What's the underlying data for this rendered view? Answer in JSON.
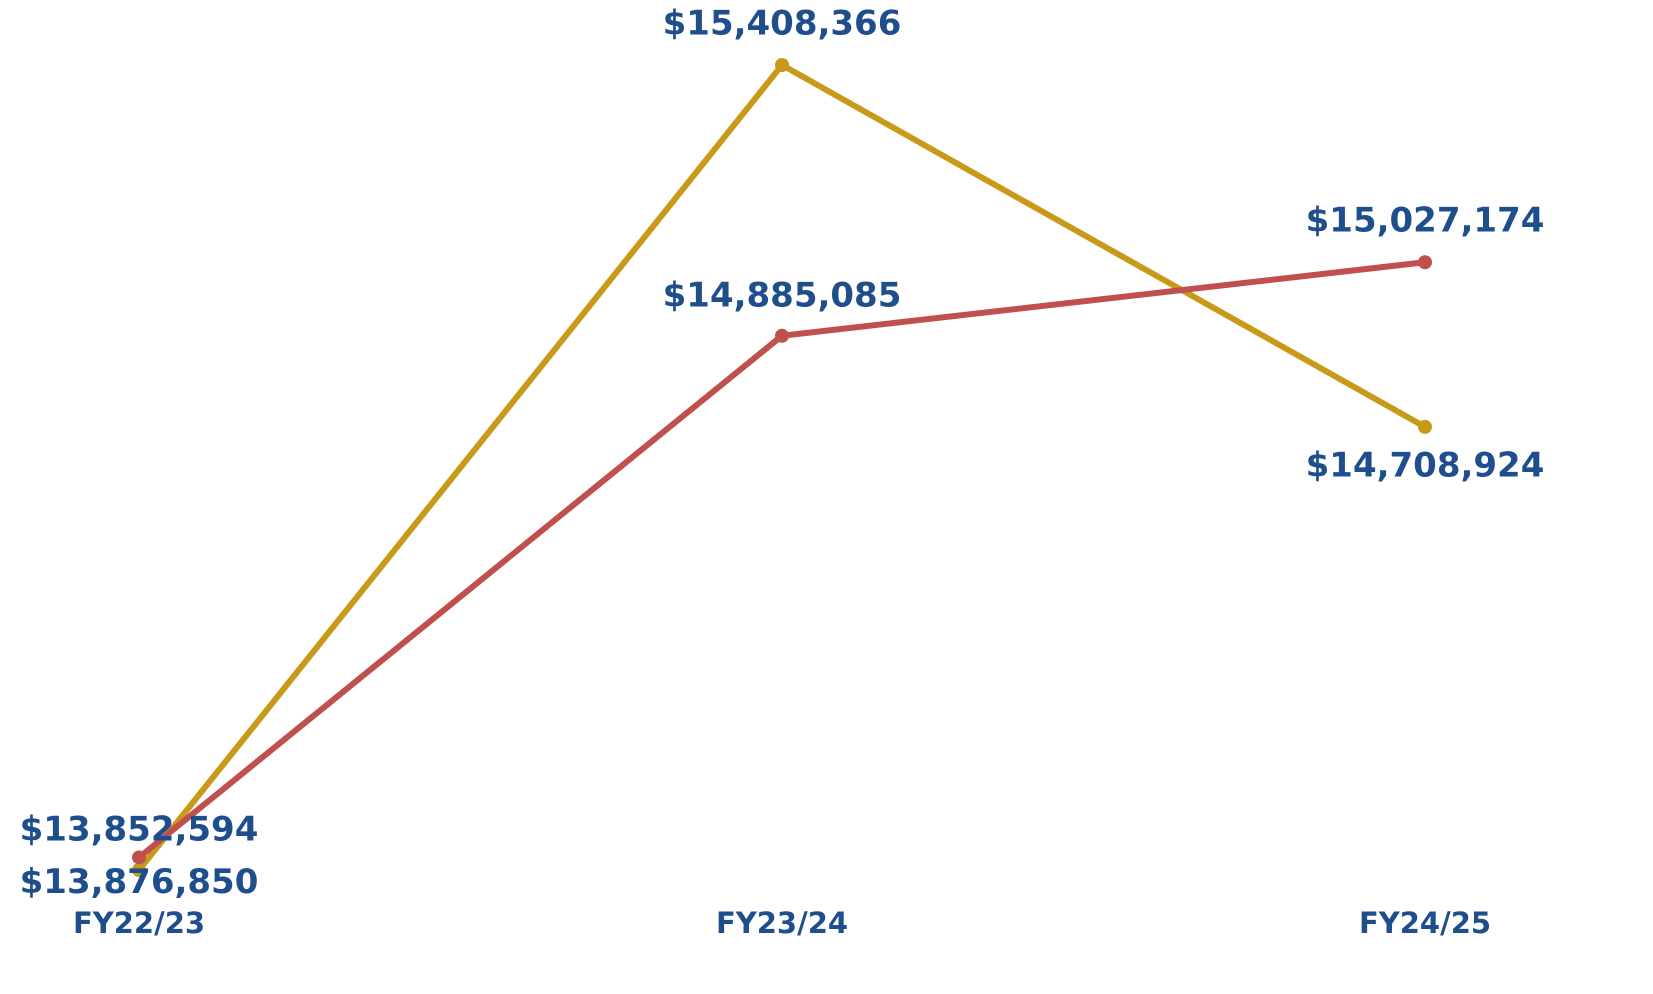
{
  "chart_data": {
    "type": "line",
    "categories": [
      "FY22/23",
      "FY23/24",
      "FY24/25"
    ],
    "series": [
      {
        "color": "#c9991a",
        "values": [
          13852594,
          15408366,
          14708924
        ],
        "value_labels": [
          "$13,852,594",
          "$15,408,366",
          "$14,708,924"
        ]
      },
      {
        "color": "#c0504d",
        "values": [
          13876850,
          14885085,
          15027174
        ],
        "value_labels": [
          "$13,876,850",
          "$14,885,085",
          "$15,027,174"
        ]
      }
    ]
  }
}
